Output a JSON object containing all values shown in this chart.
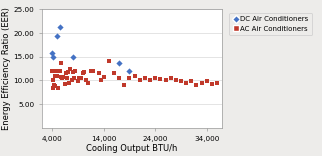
{
  "title": "",
  "xlabel": "Cooling Output BTU/h",
  "ylabel": "Energy Efficiency Ratio (EER)",
  "xlim": [
    2000,
    37000
  ],
  "ylim": [
    0,
    25.0
  ],
  "yticks": [
    5.0,
    10.0,
    15.0,
    20.0,
    25.0
  ],
  "xticks": [
    4000,
    14000,
    24000,
    34000
  ],
  "xtick_labels": [
    "4,000",
    "14,000",
    "24,000",
    "34,000"
  ],
  "background_color": "#edecea",
  "plot_bg_color": "#ffffff",
  "dc_points": [
    [
      4000,
      15.8
    ],
    [
      4200,
      14.9
    ],
    [
      5000,
      19.3
    ],
    [
      5500,
      21.2
    ],
    [
      8000,
      14.9
    ],
    [
      17000,
      13.6
    ],
    [
      19000,
      12.0
    ]
  ],
  "ac_points": [
    [
      4000,
      12.1
    ],
    [
      4100,
      8.5
    ],
    [
      4200,
      10.2
    ],
    [
      4300,
      9.0
    ],
    [
      4500,
      11.0
    ],
    [
      4600,
      8.8
    ],
    [
      4800,
      12.0
    ],
    [
      5000,
      11.0
    ],
    [
      5200,
      8.5
    ],
    [
      5500,
      12.0
    ],
    [
      5700,
      10.8
    ],
    [
      5800,
      13.6
    ],
    [
      6000,
      10.5
    ],
    [
      6200,
      10.8
    ],
    [
      6500,
      9.2
    ],
    [
      6600,
      11.5
    ],
    [
      6800,
      10.5
    ],
    [
      7000,
      11.8
    ],
    [
      7200,
      9.5
    ],
    [
      7500,
      12.5
    ],
    [
      7800,
      10.2
    ],
    [
      8000,
      11.8
    ],
    [
      8200,
      10.5
    ],
    [
      8500,
      11.9
    ],
    [
      9000,
      9.8
    ],
    [
      9200,
      10.5
    ],
    [
      9500,
      10.5
    ],
    [
      10000,
      11.5
    ],
    [
      10200,
      11.8
    ],
    [
      10500,
      10.0
    ],
    [
      11000,
      9.5
    ],
    [
      11500,
      12.0
    ],
    [
      12000,
      12.0
    ],
    [
      13000,
      11.5
    ],
    [
      13500,
      10.0
    ],
    [
      14000,
      10.8
    ],
    [
      15000,
      14.2
    ],
    [
      16000,
      11.5
    ],
    [
      17000,
      10.5
    ],
    [
      18000,
      9.0
    ],
    [
      19000,
      10.5
    ],
    [
      20000,
      11.0
    ],
    [
      21000,
      10.0
    ],
    [
      22000,
      10.5
    ],
    [
      23000,
      10.2
    ],
    [
      24000,
      10.5
    ],
    [
      25000,
      10.3
    ],
    [
      26000,
      10.0
    ],
    [
      27000,
      10.5
    ],
    [
      28000,
      10.0
    ],
    [
      29000,
      9.8
    ],
    [
      30000,
      9.5
    ],
    [
      31000,
      9.8
    ],
    [
      32000,
      9.0
    ],
    [
      33000,
      9.5
    ],
    [
      34000,
      9.8
    ],
    [
      35000,
      9.2
    ],
    [
      36000,
      9.5
    ]
  ],
  "dc_color": "#4472c4",
  "ac_color": "#c0392b",
  "dc_label": "DC Air Conditioners",
  "ac_label": "AC Air Conditioners",
  "legend_fontsize": 5.0,
  "axis_label_fontsize": 6.0,
  "tick_fontsize": 5.2
}
